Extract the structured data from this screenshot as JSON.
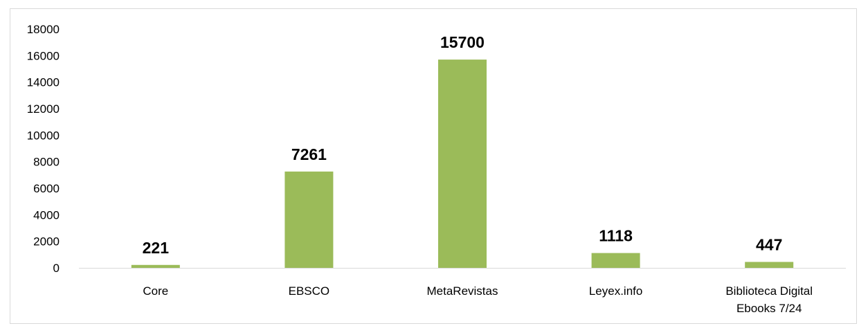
{
  "chart_data": {
    "type": "bar",
    "categories": [
      "Core",
      "EBSCO",
      "MetaRevistas",
      "Leyex.info",
      "Biblioteca Digital Ebooks 7/24"
    ],
    "category_lines": [
      [
        "Core"
      ],
      [
        "EBSCO"
      ],
      [
        "MetaRevistas"
      ],
      [
        "Leyex.info"
      ],
      [
        "Biblioteca Digital",
        "Ebooks 7/24"
      ]
    ],
    "values": [
      221,
      7261,
      15700,
      1118,
      447
    ],
    "data_labels": [
      "221",
      "7261",
      "15700",
      "1118",
      "447"
    ],
    "title": "",
    "xlabel": "",
    "ylabel": "",
    "ylim": [
      0,
      18000
    ],
    "yticks": [
      0,
      2000,
      4000,
      6000,
      8000,
      10000,
      12000,
      14000,
      16000,
      18000
    ],
    "ytick_labels": [
      "0",
      "2000",
      "4000",
      "6000",
      "8000",
      "10000",
      "12000",
      "14000",
      "16000",
      "18000"
    ],
    "grid": false,
    "legend": "none",
    "bar_color": "#9bbb59",
    "axis_color": "#d9d9d9"
  }
}
